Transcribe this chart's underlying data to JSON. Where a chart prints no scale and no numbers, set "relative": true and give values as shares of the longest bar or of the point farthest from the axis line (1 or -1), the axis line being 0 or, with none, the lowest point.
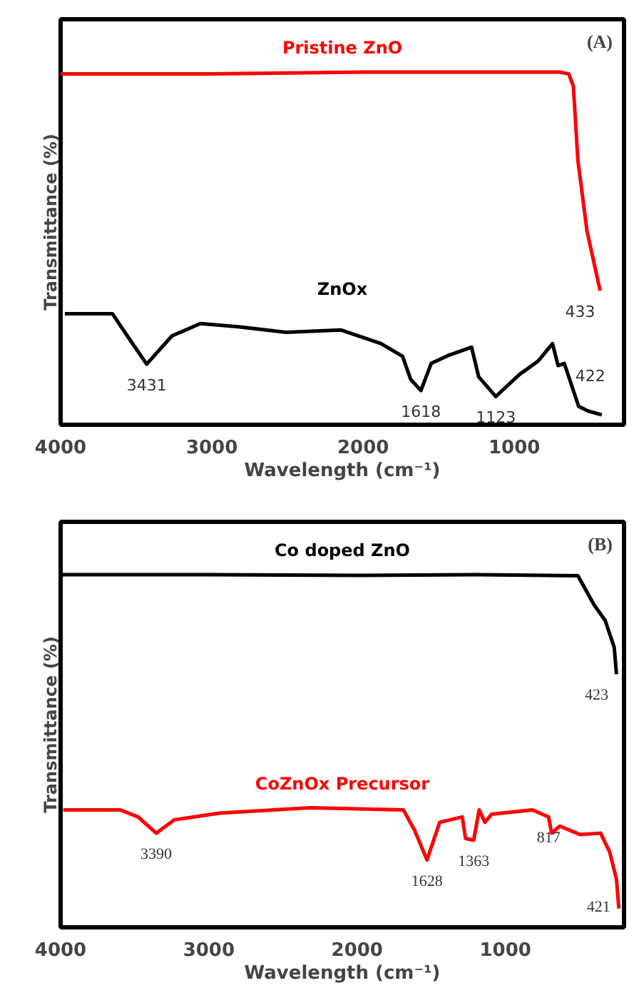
{
  "chart_data": [
    {
      "type": "line",
      "title": "(A)",
      "xlabel": "Wavelength (cm⁻¹)",
      "ylabel": "Transmittance (%)",
      "relative": true,
      "xlim": [
        4000,
        275
      ],
      "xticks": [
        4000,
        3000,
        2000,
        1000
      ],
      "series": [
        {
          "name": "Pristine ZnO",
          "color": "#ff0000",
          "x": [
            4000,
            3000,
            2000,
            700,
            640,
            610,
            580,
            520,
            433
          ],
          "values": [
            0.995,
            0.995,
            1.0,
            1.0,
            0.995,
            0.96,
            0.75,
            0.55,
            0.38
          ]
        },
        {
          "name": "ZnOx",
          "color": "#000000",
          "x": [
            3972,
            3658,
            3548,
            3431,
            3264,
            3076,
            2824,
            2510,
            2148,
            1881,
            1739,
            1686,
            1618,
            1550,
            1440,
            1283,
            1236,
            1123,
            968,
            842,
            748,
            711,
            670,
            575,
            513,
            422
          ],
          "values": [
            0.315,
            0.315,
            0.245,
            0.172,
            0.252,
            0.287,
            0.278,
            0.262,
            0.269,
            0.23,
            0.194,
            0.129,
            0.097,
            0.174,
            0.196,
            0.22,
            0.136,
            0.08,
            0.142,
            0.181,
            0.23,
            0.168,
            0.174,
            0.052,
            0.039,
            0.028
          ]
        }
      ],
      "annotations": [
        {
          "text": "433",
          "x": 433,
          "y": 0.38
        },
        {
          "text": "3431",
          "x": 3431,
          "y": 0.172
        },
        {
          "text": "1618",
          "x": 1618,
          "y": 0.097
        },
        {
          "text": "1123",
          "x": 1123,
          "y": 0.08
        },
        {
          "text": "422",
          "x": 422,
          "y": 0.028
        }
      ]
    },
    {
      "type": "line",
      "title": "(B)",
      "xlabel": "Wavelength (cm⁻¹)",
      "ylabel": "Transmittance (%)",
      "relative": true,
      "xlim": [
        4000,
        200
      ],
      "xticks": [
        4000,
        3000,
        2000,
        1000
      ],
      "series": [
        {
          "name": "Co doped ZnO",
          "color": "#000000",
          "x": [
            4000,
            3000,
            2000,
            1200,
            511,
            404,
            327,
            266,
            251
          ],
          "values": [
            1.0,
            1.0,
            0.998,
            1.0,
            0.997,
            0.916,
            0.87,
            0.794,
            0.718
          ]
        },
        {
          "name": "CoZnOx Precursor",
          "color": "#ff0000",
          "x": [
            3982,
            3599,
            3477,
            3355,
            3232,
            2927,
            2315,
            1688,
            1612,
            1529,
            1443,
            1291,
            1269,
            1214,
            1177,
            1138,
            1092,
            817,
            709,
            688,
            633,
            495,
            358,
            297,
            251,
            235
          ],
          "values": [
            0.333,
            0.333,
            0.313,
            0.267,
            0.305,
            0.324,
            0.339,
            0.333,
            0.275,
            0.191,
            0.298,
            0.313,
            0.252,
            0.247,
            0.333,
            0.298,
            0.321,
            0.333,
            0.313,
            0.267,
            0.287,
            0.263,
            0.267,
            0.214,
            0.137,
            0.053
          ]
        }
      ],
      "annotations": [
        {
          "text": "423",
          "x": 251,
          "y": 0.718
        },
        {
          "text": "3390",
          "x": 3355,
          "y": 0.267
        },
        {
          "text": "1628",
          "x": 1529,
          "y": 0.191
        },
        {
          "text": "1363",
          "x": 1214,
          "y": 0.247
        },
        {
          "text": "817",
          "x": 709,
          "y": 0.313
        },
        {
          "text": "421",
          "x": 235,
          "y": 0.053
        }
      ]
    }
  ]
}
